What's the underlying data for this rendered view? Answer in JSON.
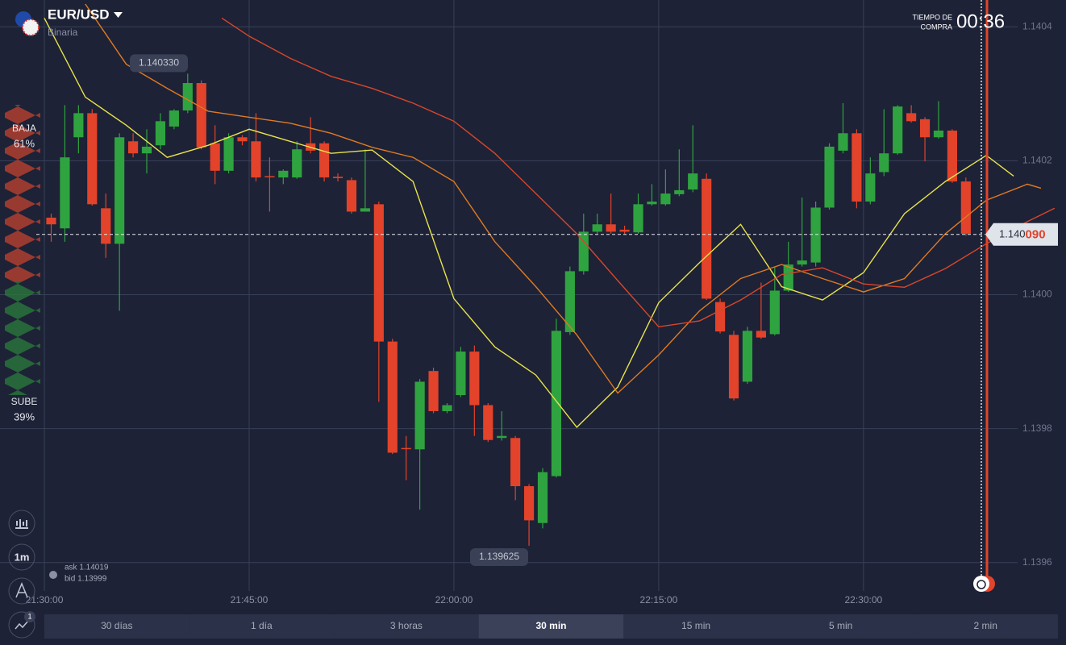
{
  "header": {
    "pair": "EUR/USD",
    "mode": "Binaria",
    "timer_label_1": "TIEMPO DE",
    "timer_label_2": "COMPRA",
    "timer": "00:36"
  },
  "sentiment": {
    "down_label": "BAJA",
    "down": {
      "value": 61,
      "label": "61%"
    },
    "up_label": "SUBE",
    "up": {
      "value": 39,
      "label": "39%"
    }
  },
  "quote": {
    "ask": "ask 1.14019",
    "bid": "bid 1.13999"
  },
  "tools": {
    "interval": "1m",
    "badge": "1"
  },
  "timeframes": {
    "options": [
      "30 días",
      "1 día",
      "3 horas",
      "30 min",
      "15 min",
      "5 min",
      "2 min"
    ],
    "active": 3
  },
  "chart_data": {
    "type": "candlestick",
    "up_color": "#2fa33f",
    "down_color": "#e2432a",
    "xlim": [
      "21:26:45",
      "22:44:50"
    ],
    "xticks": [
      "21:30:00",
      "21:45:00",
      "22:00:00",
      "22:15:00",
      "22:30:00"
    ],
    "ylim": [
      1.139525,
      1.14044
    ],
    "yticks": [
      1.1404,
      1.1402,
      {
        "value": 1.14,
        "label": "1.1400"
      },
      1.1398,
      1.1396
    ],
    "grid": true,
    "x": [
      "21:30:00",
      "21:31:00",
      "21:32:00",
      "21:33:00",
      "21:34:00",
      "21:35:00",
      "21:36:00",
      "21:37:00",
      "21:38:00",
      "21:39:00",
      "21:40:00",
      "21:41:00",
      "21:42:00",
      "21:43:00",
      "21:44:00",
      "21:45:00",
      "21:46:00",
      "21:47:00",
      "21:48:00",
      "21:49:00",
      "21:50:00",
      "21:51:00",
      "21:52:00",
      "21:53:00",
      "21:54:00",
      "21:55:00",
      "21:56:00",
      "21:57:00",
      "21:58:00",
      "21:59:00",
      "22:00:00",
      "22:01:00",
      "22:02:00",
      "22:03:00",
      "22:04:00",
      "22:05:00",
      "22:06:00",
      "22:07:00",
      "22:08:00",
      "22:09:00",
      "22:10:00",
      "22:11:00",
      "22:12:00",
      "22:13:00",
      "22:14:00",
      "22:15:00",
      "22:16:00",
      "22:17:00",
      "22:18:00",
      "22:19:00",
      "22:20:00",
      "22:21:00",
      "22:22:00",
      "22:23:00",
      "22:24:00",
      "22:25:00",
      "22:26:00",
      "22:27:00",
      "22:28:00",
      "22:29:00",
      "22:30:00",
      "22:31:00",
      "22:32:00",
      "22:33:00",
      "22:34:00",
      "22:35:00",
      "22:36:00",
      "22:37:00"
    ],
    "open": [
      1.140115,
      1.140099,
      1.140235,
      1.140271,
      1.140129,
      1.140076,
      1.140229,
      1.140211,
      1.140223,
      1.140251,
      1.140275,
      1.140316,
      1.140226,
      1.140185,
      1.140235,
      1.140229,
      1.140177,
      1.140175,
      1.140175,
      1.140226,
      1.140226,
      1.140176,
      1.140171,
      1.140124,
      1.140135,
      1.13993,
      1.139771,
      1.139769,
      1.139886,
      1.139826,
      1.13985,
      1.139915,
      1.139835,
      1.139786,
      1.139786,
      1.139714,
      1.139659,
      1.139729,
      1.139944,
      1.140035,
      1.140094,
      1.140105,
      1.140097,
      1.140093,
      1.140135,
      1.140135,
      1.14015,
      1.140157,
      1.140173,
      1.139989,
      1.13994,
      1.13987,
      1.139946,
      1.139941,
      1.140006,
      1.140045,
      1.140048,
      1.14013,
      1.140215,
      1.140241,
      1.140139,
      1.140183,
      1.140211,
      1.140271,
      1.140262,
      1.140235,
      1.140245,
      1.140169
    ],
    "high": [
      1.140121,
      1.140283,
      1.140283,
      1.140277,
      1.140151,
      1.140241,
      1.140241,
      1.140247,
      1.140271,
      1.140277,
      1.14033,
      1.14032,
      1.140253,
      1.140241,
      1.140238,
      1.140271,
      1.140205,
      1.140187,
      1.140229,
      1.140265,
      1.140229,
      1.140181,
      1.140175,
      1.140217,
      1.140139,
      1.139934,
      1.139789,
      1.139874,
      1.139891,
      1.139838,
      1.139922,
      1.139924,
      1.139838,
      1.139826,
      1.139789,
      1.139717,
      1.139741,
      1.139964,
      1.140042,
      1.140121,
      1.140121,
      1.140151,
      1.140103,
      1.140151,
      1.140165,
      1.140187,
      1.140217,
      1.140253,
      1.140181,
      1.139994,
      1.139946,
      1.139952,
      1.140018,
      1.140042,
      1.140079,
      1.140145,
      1.140139,
      1.140226,
      1.140286,
      1.140247,
      1.140205,
      1.140277,
      1.140283,
      1.140283,
      1.140265,
      1.140289,
      1.140247,
      1.140175
    ],
    "low": [
      1.140079,
      1.140079,
      1.140211,
      1.140133,
      1.140055,
      1.139976,
      1.140205,
      1.140181,
      1.140217,
      1.140247,
      1.140271,
      1.140217,
      1.140165,
      1.140181,
      1.140223,
      1.140169,
      1.140124,
      1.140165,
      1.140173,
      1.140211,
      1.140169,
      1.140169,
      1.140121,
      1.140124,
      1.13984,
      1.139762,
      1.139723,
      1.139679,
      1.139823,
      1.139823,
      1.139847,
      1.139789,
      1.13978,
      1.139782,
      1.139693,
      1.139625,
      1.139651,
      1.139727,
      1.13994,
      1.14003,
      1.140091,
      1.140091,
      1.140091,
      1.140091,
      1.140133,
      1.140133,
      1.140147,
      1.140153,
      1.139992,
      1.139942,
      1.139842,
      1.139867,
      1.139934,
      1.139939,
      1.140004,
      1.140042,
      1.140042,
      1.140127,
      1.140211,
      1.140129,
      1.140135,
      1.140177,
      1.140209,
      1.140257,
      1.140199,
      1.140233,
      1.140167,
      1.140088
    ],
    "close": [
      1.140105,
      1.140205,
      1.140271,
      1.140135,
      1.140076,
      1.140235,
      1.140211,
      1.140221,
      1.140259,
      1.140275,
      1.140316,
      1.14022,
      1.140185,
      1.140235,
      1.140229,
      1.140175,
      1.140176,
      1.140185,
      1.140217,
      1.140215,
      1.140175,
      1.140174,
      1.140124,
      1.140129,
      1.13993,
      1.139764,
      1.13977,
      1.13987,
      1.139826,
      1.139835,
      1.139915,
      1.139835,
      1.139783,
      1.139789,
      1.139714,
      1.139663,
      1.139735,
      1.139946,
      1.140035,
      1.140094,
      1.140105,
      1.140094,
      1.140094,
      1.140135,
      1.140139,
      1.140151,
      1.140156,
      1.140181,
      1.139994,
      1.139945,
      1.139845,
      1.139946,
      1.139936,
      1.140006,
      1.140045,
      1.140051,
      1.14013,
      1.140221,
      1.140241,
      1.140139,
      1.140181,
      1.140211,
      1.140281,
      1.140259,
      1.140235,
      1.140245,
      1.140169,
      1.140091
    ],
    "lines": [
      {
        "color": "#e8e34a",
        "x": [
          "21:30:00",
          "21:33:00",
          "21:36:00",
          "21:39:00",
          "21:42:00",
          "21:45:00",
          "21:48:00",
          "21:51:00",
          "21:54:00",
          "21:57:00",
          "22:00:00",
          "22:03:00",
          "22:06:00",
          "22:09:00",
          "22:12:00",
          "22:15:00",
          "22:18:00",
          "22:21:00",
          "22:24:00",
          "22:27:00",
          "22:30:00",
          "22:33:00",
          "22:36:00",
          "22:39:00",
          "22:41:00"
        ],
        "values": [
          1.140413,
          1.140295,
          1.140253,
          1.140205,
          1.140223,
          1.140247,
          1.140229,
          1.140211,
          1.140216,
          1.140169,
          1.139994,
          1.139922,
          1.13988,
          1.139802,
          1.139862,
          1.139988,
          1.140048,
          1.140105,
          1.140012,
          1.139992,
          1.140033,
          1.140121,
          1.140169,
          1.140208,
          1.140177
        ]
      },
      {
        "color": "#e07a22",
        "x": [
          "21:33:00",
          "21:36:00",
          "21:39:00",
          "21:42:00",
          "21:45:00",
          "21:48:00",
          "21:51:00",
          "21:54:00",
          "21:57:00",
          "22:00:00",
          "22:03:00",
          "22:06:00",
          "22:09:00",
          "22:12:00",
          "22:15:00",
          "22:18:00",
          "22:21:00",
          "22:24:00",
          "22:27:00",
          "22:30:00",
          "22:33:00",
          "22:36:00",
          "22:39:00",
          "22:42:00",
          "22:43:00"
        ],
        "values": [
          1.140434,
          1.140344,
          1.140308,
          1.140274,
          1.140265,
          1.140256,
          1.140241,
          1.14022,
          1.140205,
          1.140169,
          1.140079,
          1.140012,
          1.13994,
          1.139853,
          1.13991,
          1.139976,
          1.140024,
          1.140045,
          1.140024,
          1.140004,
          1.140024,
          1.140091,
          1.140141,
          1.140165,
          1.140159
        ]
      },
      {
        "color": "#d9462c",
        "x": [
          "21:43:00",
          "21:45:00",
          "21:48:00",
          "21:51:00",
          "21:54:00",
          "21:57:00",
          "22:00:00",
          "22:03:00",
          "22:06:00",
          "22:09:00",
          "22:12:00",
          "22:15:00",
          "22:18:00",
          "22:21:00",
          "22:24:00",
          "22:27:00",
          "22:30:00",
          "22:33:00",
          "22:36:00",
          "22:39:00",
          "22:42:00",
          "22:44:00"
        ],
        "values": [
          1.140413,
          1.140386,
          1.140353,
          1.140326,
          1.140308,
          1.140286,
          1.140259,
          1.140211,
          1.140151,
          1.140091,
          1.140021,
          1.139952,
          1.139961,
          1.139992,
          1.14003,
          1.14004,
          1.140016,
          1.140011,
          1.140039,
          1.140076,
          1.140109,
          1.140129
        ]
      }
    ],
    "current_price": {
      "value": 1.14009,
      "label_main": "1.140",
      "label_tail": "090"
    },
    "max_label": {
      "value": 1.14033,
      "label": "1.140330"
    },
    "min_label": {
      "value": 1.139625,
      "label": "1.139625"
    }
  }
}
